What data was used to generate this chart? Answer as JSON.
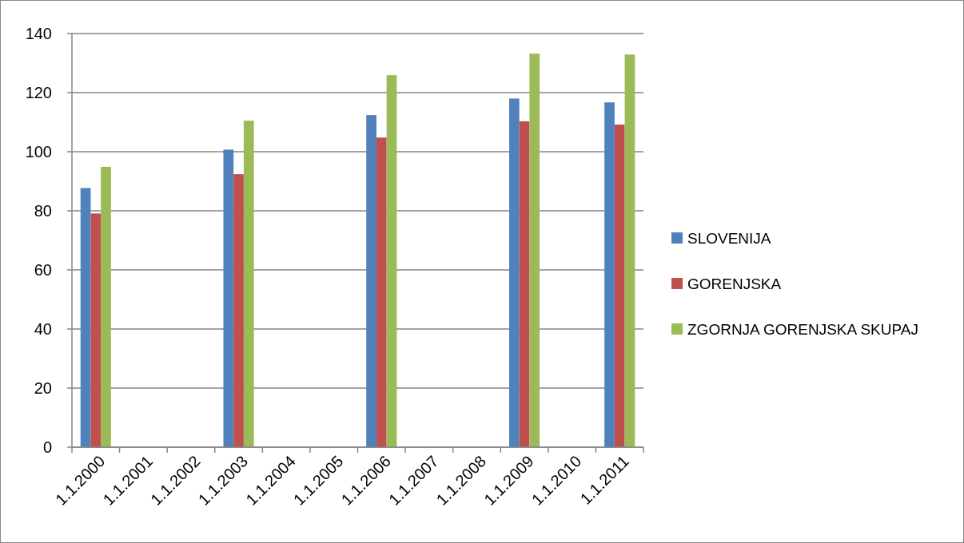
{
  "chart_data": {
    "type": "bar",
    "categories": [
      "1.1.2000",
      "1.1.2001",
      "1.1.2002",
      "1.1.2003",
      "1.1.2004",
      "1.1.2005",
      "1.1.2006",
      "1.1.2007",
      "1.1.2008",
      "1.1.2009",
      "1.1.2010",
      "1.1.2011"
    ],
    "series": [
      {
        "name": "SLOVENIJA",
        "color": "#4f81bd",
        "values": [
          87.7,
          null,
          null,
          100.7,
          null,
          null,
          112.4,
          null,
          null,
          118.0,
          null,
          116.7
        ]
      },
      {
        "name": "GORENJSKA",
        "color": "#c0504d",
        "values": [
          79.1,
          null,
          null,
          92.4,
          null,
          null,
          104.8,
          null,
          null,
          110.3,
          null,
          109.2
        ]
      },
      {
        "name": "ZGORNJA GORENJSKA SKUPAJ",
        "color": "#9bbb59",
        "values": [
          94.9,
          null,
          null,
          110.5,
          null,
          null,
          125.9,
          null,
          null,
          133.2,
          null,
          132.9
        ]
      }
    ],
    "ylim": [
      0,
      140
    ],
    "yticks": [
      0,
      20,
      40,
      60,
      80,
      100,
      120,
      140
    ],
    "grid": "y",
    "legend": "right"
  }
}
